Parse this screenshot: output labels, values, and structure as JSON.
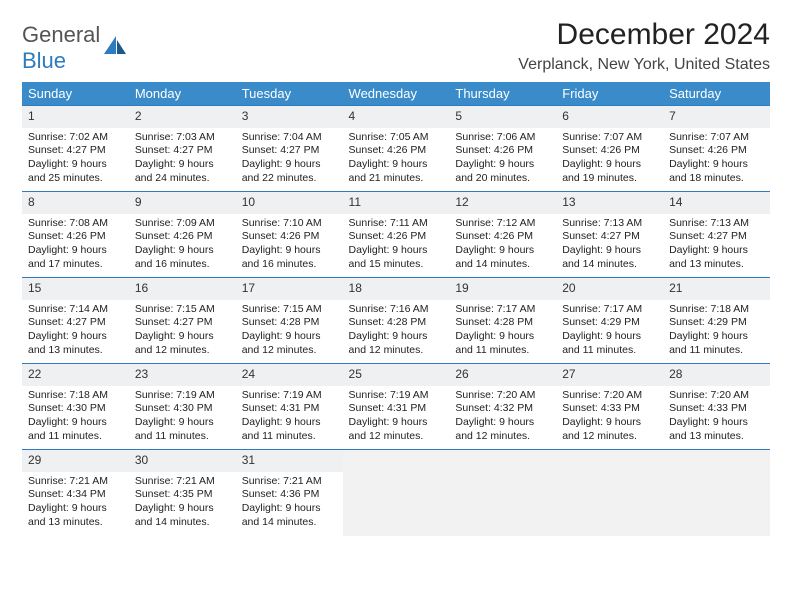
{
  "logo": {
    "word1": "General",
    "word2": "Blue"
  },
  "title": "December 2024",
  "location": "Verplanck, New York, United States",
  "colors": {
    "header_bg": "#3a8bc9",
    "header_text": "#ffffff",
    "row_border": "#2f7bbf",
    "daynum_bg": "#eef0f1",
    "empty_bg": "#f2f2f2",
    "logo_gray": "#555555",
    "logo_blue": "#2f7bbf"
  },
  "headers": [
    "Sunday",
    "Monday",
    "Tuesday",
    "Wednesday",
    "Thursday",
    "Friday",
    "Saturday"
  ],
  "weeks": [
    [
      {
        "n": "1",
        "sr": "7:02 AM",
        "ss": "4:27 PM",
        "dl": "9 hours and 25 minutes."
      },
      {
        "n": "2",
        "sr": "7:03 AM",
        "ss": "4:27 PM",
        "dl": "9 hours and 24 minutes."
      },
      {
        "n": "3",
        "sr": "7:04 AM",
        "ss": "4:27 PM",
        "dl": "9 hours and 22 minutes."
      },
      {
        "n": "4",
        "sr": "7:05 AM",
        "ss": "4:26 PM",
        "dl": "9 hours and 21 minutes."
      },
      {
        "n": "5",
        "sr": "7:06 AM",
        "ss": "4:26 PM",
        "dl": "9 hours and 20 minutes."
      },
      {
        "n": "6",
        "sr": "7:07 AM",
        "ss": "4:26 PM",
        "dl": "9 hours and 19 minutes."
      },
      {
        "n": "7",
        "sr": "7:07 AM",
        "ss": "4:26 PM",
        "dl": "9 hours and 18 minutes."
      }
    ],
    [
      {
        "n": "8",
        "sr": "7:08 AM",
        "ss": "4:26 PM",
        "dl": "9 hours and 17 minutes."
      },
      {
        "n": "9",
        "sr": "7:09 AM",
        "ss": "4:26 PM",
        "dl": "9 hours and 16 minutes."
      },
      {
        "n": "10",
        "sr": "7:10 AM",
        "ss": "4:26 PM",
        "dl": "9 hours and 16 minutes."
      },
      {
        "n": "11",
        "sr": "7:11 AM",
        "ss": "4:26 PM",
        "dl": "9 hours and 15 minutes."
      },
      {
        "n": "12",
        "sr": "7:12 AM",
        "ss": "4:26 PM",
        "dl": "9 hours and 14 minutes."
      },
      {
        "n": "13",
        "sr": "7:13 AM",
        "ss": "4:27 PM",
        "dl": "9 hours and 14 minutes."
      },
      {
        "n": "14",
        "sr": "7:13 AM",
        "ss": "4:27 PM",
        "dl": "9 hours and 13 minutes."
      }
    ],
    [
      {
        "n": "15",
        "sr": "7:14 AM",
        "ss": "4:27 PM",
        "dl": "9 hours and 13 minutes."
      },
      {
        "n": "16",
        "sr": "7:15 AM",
        "ss": "4:27 PM",
        "dl": "9 hours and 12 minutes."
      },
      {
        "n": "17",
        "sr": "7:15 AM",
        "ss": "4:28 PM",
        "dl": "9 hours and 12 minutes."
      },
      {
        "n": "18",
        "sr": "7:16 AM",
        "ss": "4:28 PM",
        "dl": "9 hours and 12 minutes."
      },
      {
        "n": "19",
        "sr": "7:17 AM",
        "ss": "4:28 PM",
        "dl": "9 hours and 11 minutes."
      },
      {
        "n": "20",
        "sr": "7:17 AM",
        "ss": "4:29 PM",
        "dl": "9 hours and 11 minutes."
      },
      {
        "n": "21",
        "sr": "7:18 AM",
        "ss": "4:29 PM",
        "dl": "9 hours and 11 minutes."
      }
    ],
    [
      {
        "n": "22",
        "sr": "7:18 AM",
        "ss": "4:30 PM",
        "dl": "9 hours and 11 minutes."
      },
      {
        "n": "23",
        "sr": "7:19 AM",
        "ss": "4:30 PM",
        "dl": "9 hours and 11 minutes."
      },
      {
        "n": "24",
        "sr": "7:19 AM",
        "ss": "4:31 PM",
        "dl": "9 hours and 11 minutes."
      },
      {
        "n": "25",
        "sr": "7:19 AM",
        "ss": "4:31 PM",
        "dl": "9 hours and 12 minutes."
      },
      {
        "n": "26",
        "sr": "7:20 AM",
        "ss": "4:32 PM",
        "dl": "9 hours and 12 minutes."
      },
      {
        "n": "27",
        "sr": "7:20 AM",
        "ss": "4:33 PM",
        "dl": "9 hours and 12 minutes."
      },
      {
        "n": "28",
        "sr": "7:20 AM",
        "ss": "4:33 PM",
        "dl": "9 hours and 13 minutes."
      }
    ],
    [
      {
        "n": "29",
        "sr": "7:21 AM",
        "ss": "4:34 PM",
        "dl": "9 hours and 13 minutes."
      },
      {
        "n": "30",
        "sr": "7:21 AM",
        "ss": "4:35 PM",
        "dl": "9 hours and 14 minutes."
      },
      {
        "n": "31",
        "sr": "7:21 AM",
        "ss": "4:36 PM",
        "dl": "9 hours and 14 minutes."
      },
      null,
      null,
      null,
      null
    ]
  ],
  "labels": {
    "sunrise": "Sunrise: ",
    "sunset": "Sunset: ",
    "daylight": "Daylight: "
  }
}
